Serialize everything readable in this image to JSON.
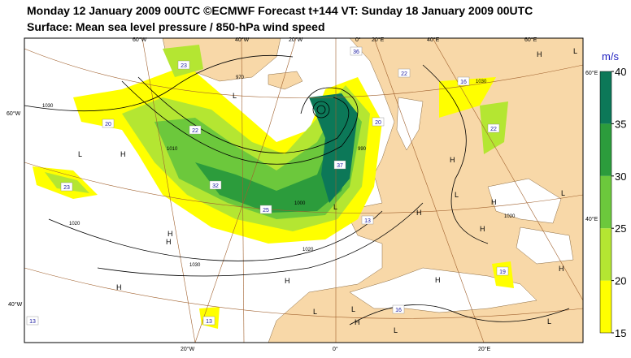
{
  "header": {
    "title": "Monday 12 January 2009 00UTC ©ECMWF Forecast t+144 VT: Sunday 18 January 2009 00UTC",
    "subtitle": "Surface: Mean sea level pressure / 850-hPa wind speed"
  },
  "colorbar": {
    "unit": "m/s",
    "ticks": [
      15,
      20,
      25,
      30,
      35,
      40
    ],
    "colors": [
      "#ffff00",
      "#b4e632",
      "#6cc83c",
      "#2c9c3c",
      "#0c7858"
    ]
  },
  "graticule": [
    "60°W",
    "40°W",
    "20°W",
    "0°",
    "20°E",
    "40°E",
    "60°E",
    "60°W",
    "40°W",
    "20°W",
    "0°",
    "20°E",
    "60°E",
    "40°E"
  ],
  "pressure_centres": [
    "L",
    "H",
    "L",
    "H",
    "L",
    "H",
    "L",
    "H",
    "L",
    "H",
    "H",
    "H",
    "H",
    "L",
    "H",
    "H",
    "H",
    "H",
    "L",
    "L",
    "H",
    "L",
    "L"
  ],
  "isobar_labels": [
    "1030",
    "1020",
    "1030",
    "1020",
    "1000",
    "970",
    "990",
    "1010",
    "1030",
    "1020"
  ],
  "wind_labels": [
    "20",
    "23",
    "22",
    "32",
    "25",
    "13",
    "13",
    "36",
    "22",
    "16",
    "20",
    "22",
    "37",
    "13",
    "19",
    "16",
    "23"
  ]
}
